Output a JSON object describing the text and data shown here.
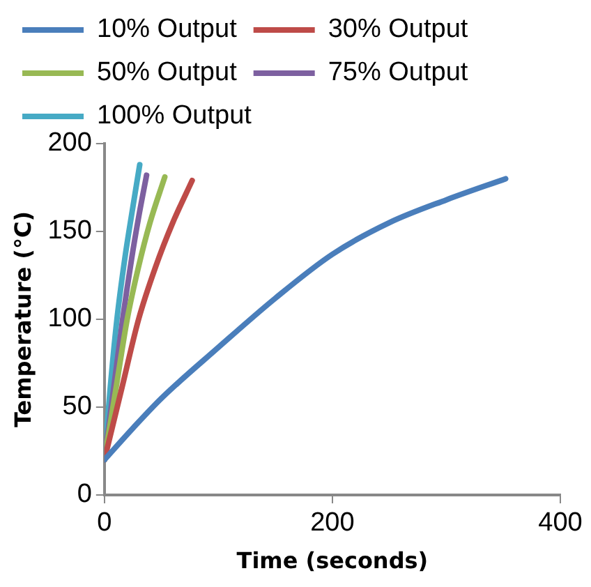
{
  "chart_data": {
    "type": "line",
    "xlabel": "Time (seconds)",
    "ylabel": "Temperature (°C)",
    "xlim": [
      0,
      400
    ],
    "xticks": [
      0,
      200,
      400
    ],
    "ylim": [
      0,
      200
    ],
    "yticks": [
      0,
      50,
      100,
      150,
      200
    ],
    "grid": false,
    "legend": "top left",
    "marker": "none",
    "line_style": "solid",
    "series": [
      {
        "name": "10% Output",
        "color": "#4a7ebb",
        "x": [
          0,
          25,
          50,
          100,
          150,
          200,
          250,
          300,
          352
        ],
        "values": [
          20,
          38,
          55,
          84,
          112,
          137,
          155,
          168,
          180
        ]
      },
      {
        "name": "30% Output",
        "color": "#be4b48",
        "x": [
          0,
          15,
          30,
          45,
          60,
          77
        ],
        "values": [
          20,
          60,
          100,
          130,
          155,
          179
        ]
      },
      {
        "name": "50% Output",
        "color": "#98b954",
        "x": [
          0,
          10,
          20,
          30,
          40,
          53
        ],
        "values": [
          20,
          60,
          100,
          130,
          155,
          181
        ]
      },
      {
        "name": "75% Output",
        "color": "#7d60a0",
        "x": [
          0,
          8,
          16,
          24,
          30,
          37
        ],
        "values": [
          20,
          60,
          100,
          135,
          158,
          182
        ]
      },
      {
        "name": "100% Output",
        "color": "#46aac5",
        "x": [
          0,
          5,
          11,
          18,
          24,
          31
        ],
        "values": [
          20,
          60,
          100,
          135,
          160,
          188
        ]
      }
    ]
  }
}
